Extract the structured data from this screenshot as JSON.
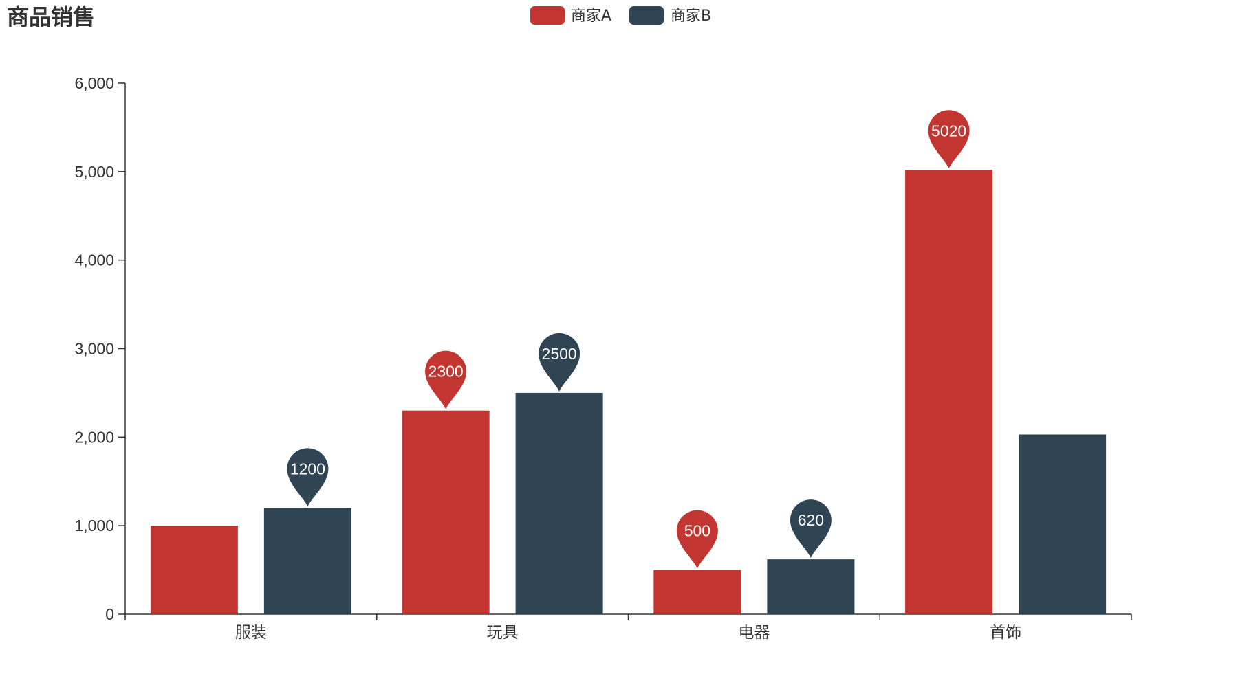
{
  "chart_data": {
    "type": "bar",
    "title": "商品销售",
    "categories": [
      "服装",
      "玩具",
      "电器",
      "首饰"
    ],
    "series": [
      {
        "name": "商家A",
        "color": "#c23531",
        "values": [
          1000,
          2300,
          500,
          5020
        ],
        "pins": [
          false,
          true,
          true,
          true
        ]
      },
      {
        "name": "商家B",
        "color": "#2f4554",
        "values": [
          1200,
          2500,
          620,
          2030
        ],
        "pins": [
          true,
          true,
          true,
          false
        ]
      }
    ],
    "ylim": [
      0,
      6000
    ],
    "yticks": [
      0,
      1000,
      2000,
      3000,
      4000,
      5000,
      6000
    ],
    "ytick_labels": [
      "0",
      "1,000",
      "2,000",
      "3,000",
      "4,000",
      "5,000",
      "6,000"
    ],
    "xlabel": "",
    "ylabel": "",
    "grid": false,
    "legend": "top-center"
  }
}
